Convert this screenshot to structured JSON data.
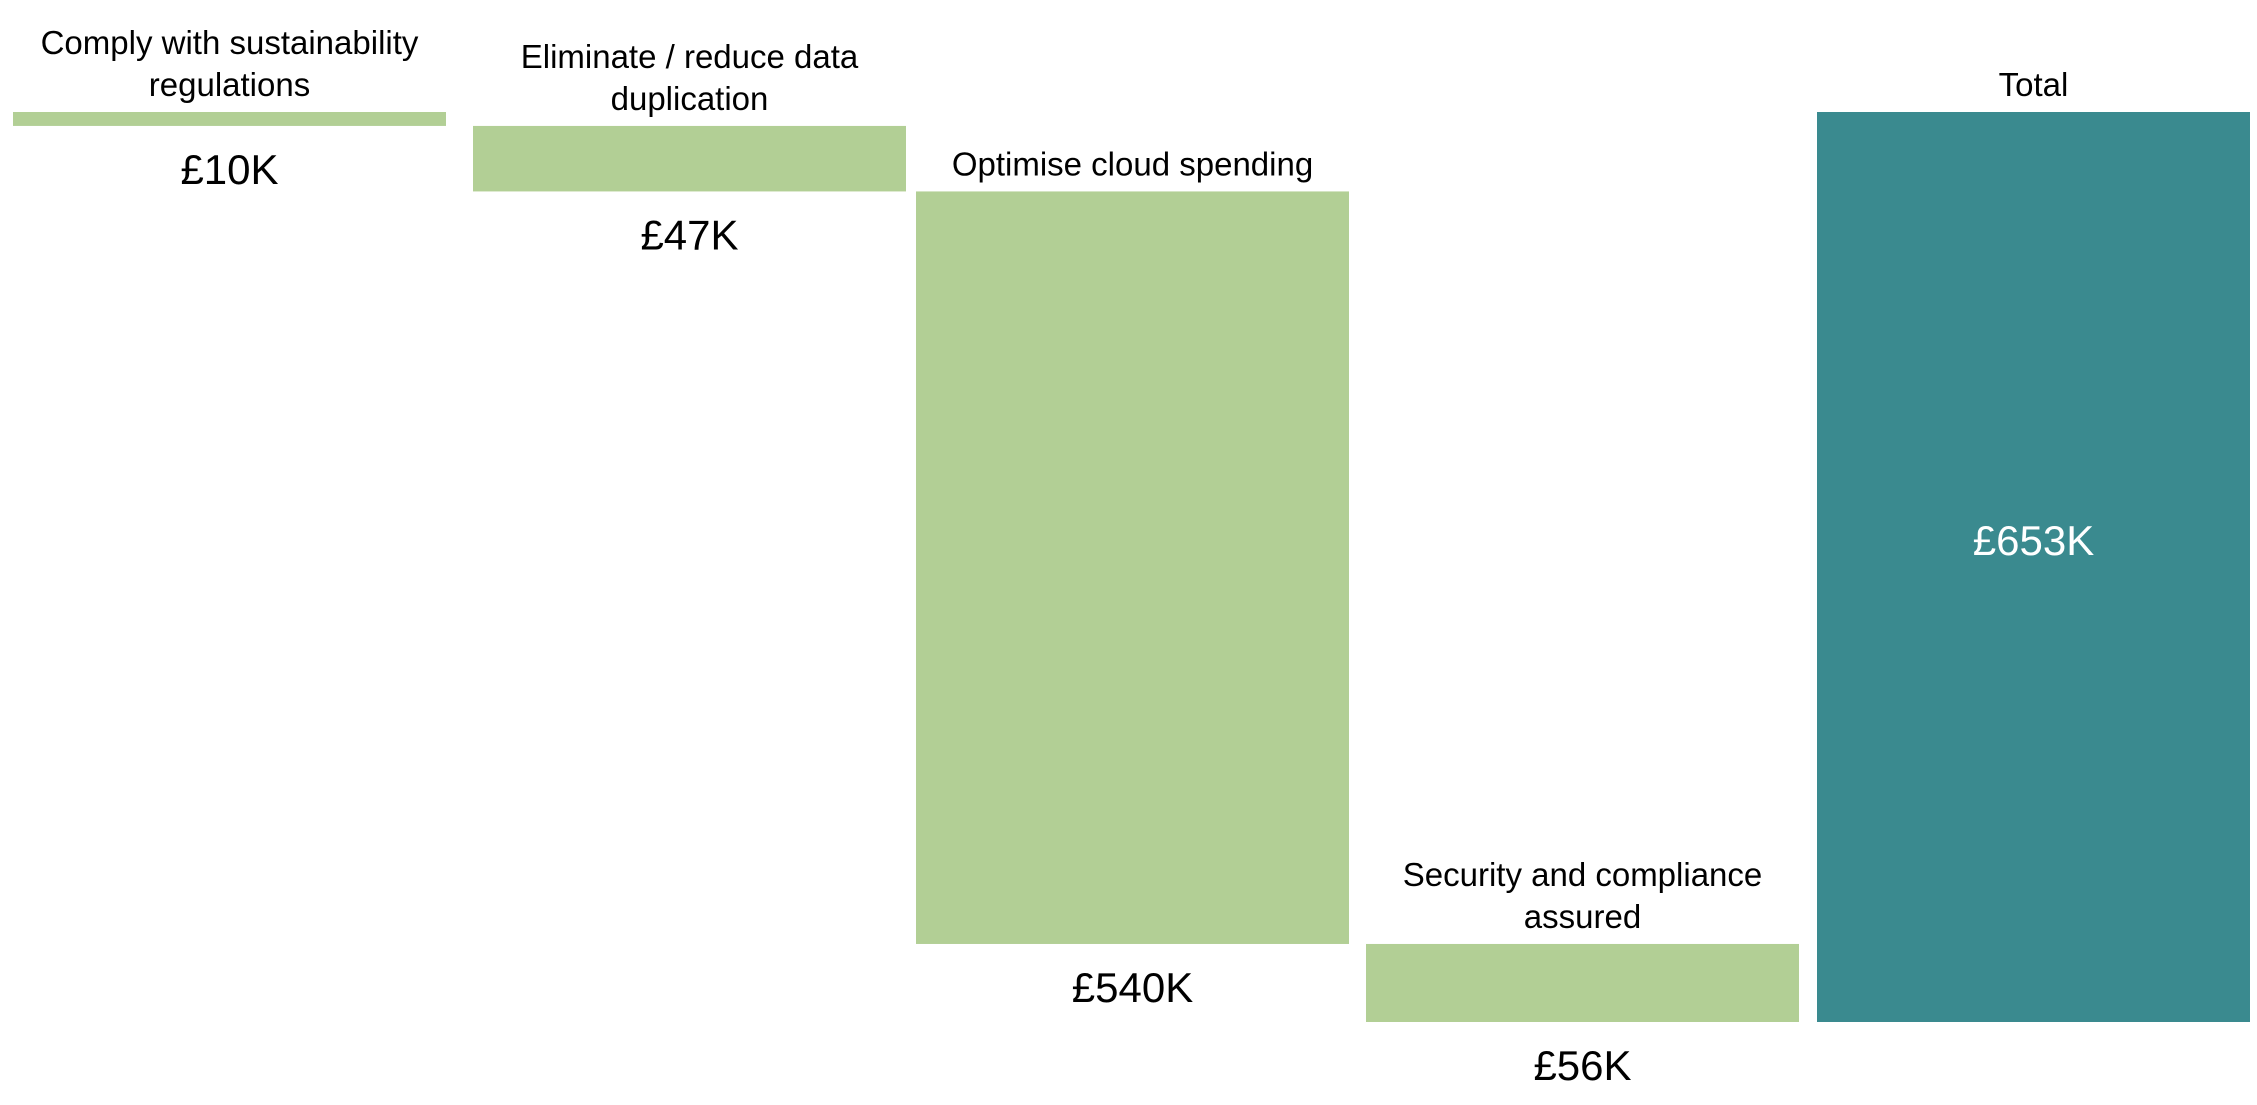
{
  "chart_data": {
    "type": "bar",
    "subtype": "waterfall",
    "title": "",
    "xlabel": "",
    "ylabel": "",
    "grid": false,
    "legend": "none",
    "categories": [
      [
        "Comply with sustainability",
        "regulations"
      ],
      [
        "Eliminate / reduce data",
        "duplication"
      ],
      [
        "Optimise cloud spending"
      ],
      [
        "Security and compliance",
        "assured"
      ],
      [
        "Total"
      ]
    ],
    "values": [
      10,
      47,
      540,
      56,
      653
    ],
    "value_labels": [
      "£10K",
      "£47K",
      "£540K",
      "£56K",
      "£653K"
    ],
    "is_total": [
      false,
      false,
      false,
      false,
      true
    ],
    "unit": "£K",
    "colors": {
      "step": "#b2cf95",
      "total": "#3a8a8f",
      "text": "#000000",
      "total_text": "#ffffff"
    }
  }
}
